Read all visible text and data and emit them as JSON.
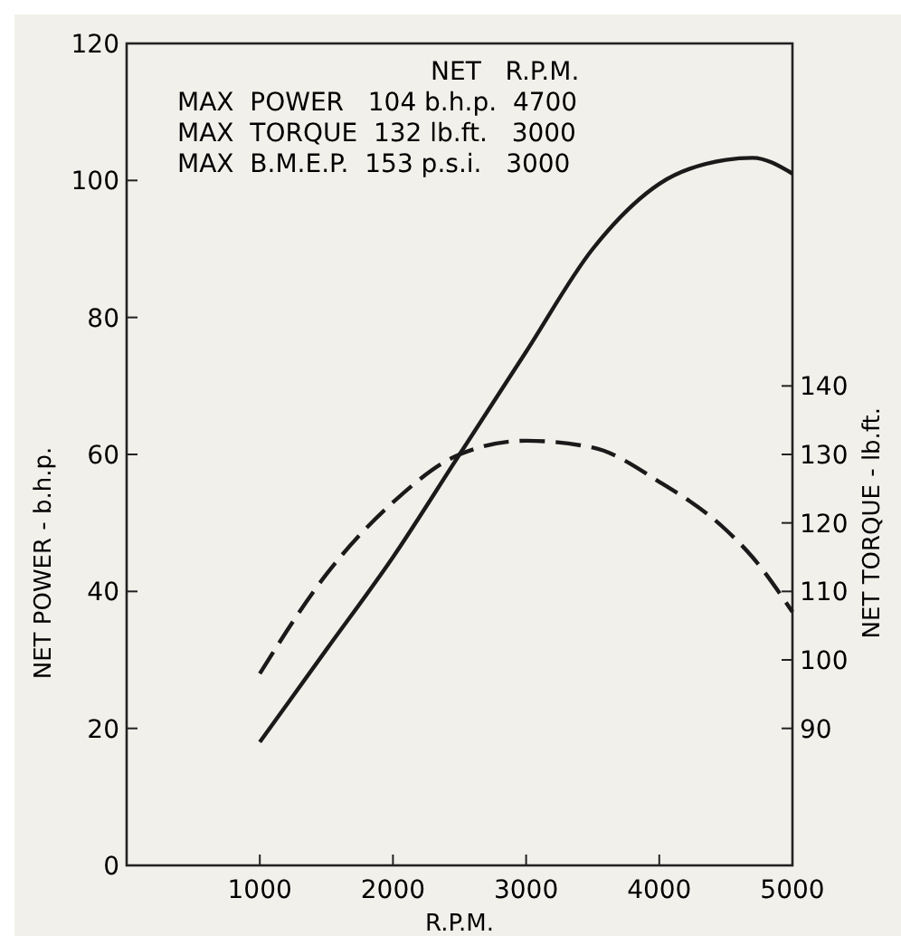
{
  "chart_data": {
    "type": "line",
    "xlabel": "R.P.M.",
    "ylabel": "NET POWER - b.h.p.",
    "y2label": "NET TORQUE - lb.ft.",
    "x": [
      1000,
      1500,
      2000,
      2500,
      3000,
      3500,
      4000,
      4500,
      4700,
      5000
    ],
    "series": [
      {
        "color": "#1a1a1a",
        "line_style": "solid",
        "values": [
          18,
          31.5,
          45,
          60,
          75,
          90,
          99.5,
          103,
          103.3,
          101
        ]
      },
      {
        "color": "#1a1a1a",
        "line_style": "dashed",
        "axis": "y2",
        "values": [
          98,
          112.5,
          123,
          130,
          132,
          131,
          126,
          119,
          115,
          107
        ]
      }
    ],
    "xlim": [
      0,
      5000
    ],
    "xticks": [
      {
        "value": 0,
        "label": null
      },
      1000,
      2000,
      3000,
      4000,
      5000
    ],
    "ylim": [
      0,
      120
    ],
    "yticks": [
      0,
      20,
      40,
      60,
      80,
      100,
      120
    ],
    "y2lim": [
      70,
      190
    ],
    "y2ticks": [
      90,
      100,
      110,
      120,
      130,
      140
    ],
    "annotations": [
      "NET   R.P.M.",
      "MAX  POWER   104 b.h.p.  4700",
      "MAX  TORQUE  132 lb.ft.   3000",
      "MAX  B.M.E.P.  153 p.s.i.   3000"
    ],
    "grid": false
  }
}
